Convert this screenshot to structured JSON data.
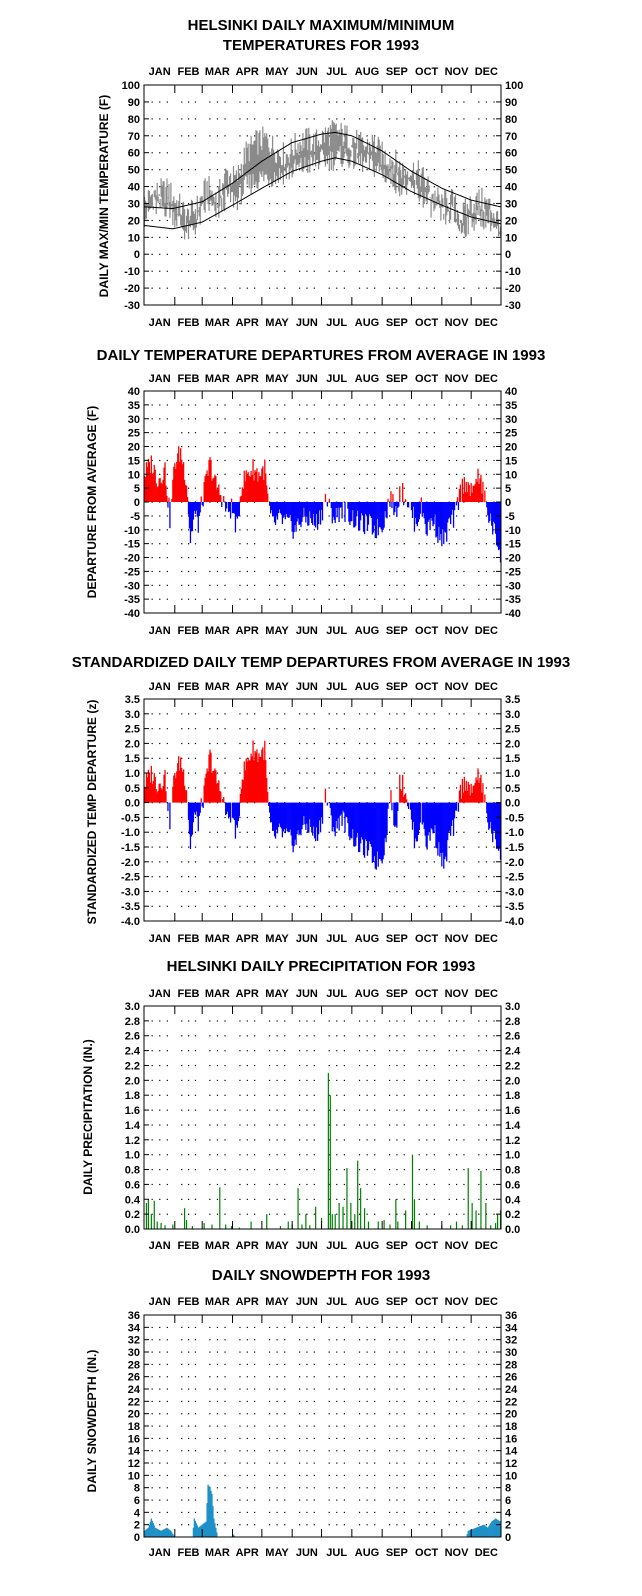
{
  "months": [
    "JAN",
    "FEB",
    "MAR",
    "APR",
    "MAY",
    "JUN",
    "JUL",
    "AUG",
    "SEP",
    "OCT",
    "NOV",
    "DEC"
  ],
  "colors": {
    "pos": "#ff0000",
    "neg": "#0000ff",
    "precip": "#008000",
    "snow": "#1e90c8",
    "gray": "#8a8a8a"
  },
  "chart_data": [
    {
      "type": "line",
      "title": [
        "HELSINKI DAILY MAXIMUM/MINIMUM",
        "TEMPERATURES FOR 1993"
      ],
      "ylabel": "DAILY MAX/MIN TEMPERATURE (F)",
      "ylim": [
        -30,
        100
      ],
      "yticks": [
        100,
        90,
        80,
        70,
        60,
        50,
        40,
        30,
        20,
        10,
        0,
        -10,
        -20,
        -30
      ],
      "x_unit": "day of year",
      "series": [],
      "daily_max_anchors": [
        [
          1,
          30
        ],
        [
          10,
          36
        ],
        [
          25,
          38
        ],
        [
          35,
          30
        ],
        [
          45,
          22
        ],
        [
          55,
          28
        ],
        [
          65,
          40
        ],
        [
          75,
          32
        ],
        [
          85,
          48
        ],
        [
          95,
          44
        ],
        [
          105,
          60
        ],
        [
          115,
          66
        ],
        [
          125,
          68
        ],
        [
          135,
          62
        ],
        [
          145,
          58
        ],
        [
          155,
          64
        ],
        [
          165,
          68
        ],
        [
          175,
          66
        ],
        [
          185,
          70
        ],
        [
          195,
          73
        ],
        [
          205,
          70
        ],
        [
          215,
          68
        ],
        [
          225,
          63
        ],
        [
          235,
          66
        ],
        [
          245,
          58
        ],
        [
          255,
          56
        ],
        [
          265,
          50
        ],
        [
          275,
          50
        ],
        [
          285,
          46
        ],
        [
          295,
          36
        ],
        [
          305,
          30
        ],
        [
          315,
          32
        ],
        [
          325,
          22
        ],
        [
          335,
          30
        ],
        [
          345,
          32
        ],
        [
          355,
          28
        ],
        [
          365,
          18
        ]
      ],
      "daily_min_anchors": [
        [
          1,
          22
        ],
        [
          10,
          28
        ],
        [
          25,
          28
        ],
        [
          35,
          20
        ],
        [
          45,
          12
        ],
        [
          55,
          18
        ],
        [
          65,
          30
        ],
        [
          75,
          24
        ],
        [
          85,
          34
        ],
        [
          95,
          32
        ],
        [
          105,
          40
        ],
        [
          115,
          44
        ],
        [
          125,
          46
        ],
        [
          135,
          46
        ],
        [
          145,
          48
        ],
        [
          155,
          50
        ],
        [
          165,
          52
        ],
        [
          175,
          54
        ],
        [
          185,
          56
        ],
        [
          195,
          56
        ],
        [
          205,
          58
        ],
        [
          215,
          56
        ],
        [
          225,
          54
        ],
        [
          235,
          52
        ],
        [
          245,
          48
        ],
        [
          255,
          44
        ],
        [
          265,
          40
        ],
        [
          275,
          38
        ],
        [
          285,
          34
        ],
        [
          295,
          28
        ],
        [
          305,
          22
        ],
        [
          315,
          24
        ],
        [
          325,
          14
        ],
        [
          335,
          20
        ],
        [
          345,
          22
        ],
        [
          355,
          20
        ],
        [
          365,
          8
        ]
      ],
      "normal_max_anchors": [
        [
          1,
          28
        ],
        [
          30,
          27
        ],
        [
          60,
          31
        ],
        [
          91,
          42
        ],
        [
          121,
          55
        ],
        [
          152,
          66
        ],
        [
          182,
          71
        ],
        [
          196,
          72
        ],
        [
          213,
          70
        ],
        [
          244,
          61
        ],
        [
          274,
          49
        ],
        [
          305,
          39
        ],
        [
          335,
          32
        ],
        [
          365,
          28
        ]
      ],
      "normal_min_anchors": [
        [
          1,
          17
        ],
        [
          30,
          15
        ],
        [
          60,
          19
        ],
        [
          91,
          29
        ],
        [
          121,
          39
        ],
        [
          152,
          49
        ],
        [
          182,
          55
        ],
        [
          196,
          57
        ],
        [
          213,
          55
        ],
        [
          244,
          47
        ],
        [
          274,
          37
        ],
        [
          305,
          29
        ],
        [
          335,
          22
        ],
        [
          365,
          18
        ]
      ]
    },
    {
      "type": "bar",
      "title": [
        "DAILY TEMPERATURE DEPARTURES FROM AVERAGE IN 1993"
      ],
      "ylabel": "DEPARTURE FROM AVERAGE (F)",
      "ylim": [
        -40,
        40
      ],
      "yticks": [
        40,
        35,
        30,
        25,
        20,
        15,
        10,
        5,
        0,
        -5,
        -10,
        -15,
        -20,
        -25,
        -30,
        -35,
        -40
      ],
      "anchors": [
        [
          1,
          10
        ],
        [
          8,
          14
        ],
        [
          15,
          8
        ],
        [
          22,
          12
        ],
        [
          27,
          -6
        ],
        [
          32,
          14
        ],
        [
          38,
          18
        ],
        [
          44,
          8
        ],
        [
          48,
          -14
        ],
        [
          52,
          -4
        ],
        [
          56,
          -8
        ],
        [
          62,
          4
        ],
        [
          68,
          14
        ],
        [
          74,
          6
        ],
        [
          80,
          2
        ],
        [
          86,
          -4
        ],
        [
          90,
          -2
        ],
        [
          96,
          -10
        ],
        [
          100,
          6
        ],
        [
          106,
          10
        ],
        [
          112,
          12
        ],
        [
          118,
          10
        ],
        [
          124,
          12
        ],
        [
          128,
          -2
        ],
        [
          132,
          -8
        ],
        [
          140,
          -6
        ],
        [
          148,
          -8
        ],
        [
          155,
          -10
        ],
        [
          162,
          -6
        ],
        [
          170,
          -6
        ],
        [
          176,
          -8
        ],
        [
          182,
          -4
        ],
        [
          186,
          1
        ],
        [
          190,
          -2
        ],
        [
          196,
          -6
        ],
        [
          202,
          -2
        ],
        [
          208,
          -4
        ],
        [
          215,
          -6
        ],
        [
          222,
          -8
        ],
        [
          230,
          -8
        ],
        [
          238,
          -10
        ],
        [
          244,
          -8
        ],
        [
          248,
          -4
        ],
        [
          252,
          2
        ],
        [
          258,
          -4
        ],
        [
          262,
          4
        ],
        [
          268,
          2
        ],
        [
          273,
          -2
        ],
        [
          278,
          -8
        ],
        [
          284,
          -2
        ],
        [
          290,
          -10
        ],
        [
          296,
          -6
        ],
        [
          302,
          -12
        ],
        [
          308,
          -14
        ],
        [
          312,
          -8
        ],
        [
          318,
          -6
        ],
        [
          324,
          4
        ],
        [
          330,
          8
        ],
        [
          336,
          2
        ],
        [
          340,
          10
        ],
        [
          346,
          6
        ],
        [
          352,
          -4
        ],
        [
          358,
          -10
        ],
        [
          365,
          -18
        ]
      ]
    },
    {
      "type": "bar",
      "title": [
        "STANDARDIZED DAILY TEMP DEPARTURES FROM AVERAGE IN 1993"
      ],
      "ylabel": "STANDARDIZED TEMP DEPARTURE (z)",
      "ylim": [
        -4.0,
        3.5
      ],
      "yticks": [
        "3.5",
        "3.0",
        "2.5",
        "2.0",
        "1.5",
        "1.0",
        "0.5",
        "0.0",
        "-0.5",
        "-1.0",
        "-1.5",
        "-2.0",
        "-2.5",
        "-3.0",
        "-3.5",
        "-4.0"
      ],
      "anchors": [
        [
          1,
          0.6
        ],
        [
          8,
          1.0
        ],
        [
          15,
          0.6
        ],
        [
          22,
          0.9
        ],
        [
          27,
          -0.6
        ],
        [
          32,
          1.0
        ],
        [
          38,
          1.4
        ],
        [
          44,
          0.6
        ],
        [
          48,
          -1.5
        ],
        [
          52,
          -0.4
        ],
        [
          56,
          -0.7
        ],
        [
          62,
          0.3
        ],
        [
          68,
          1.6
        ],
        [
          74,
          0.8
        ],
        [
          80,
          0.3
        ],
        [
          86,
          -0.6
        ],
        [
          90,
          -0.3
        ],
        [
          96,
          -1.2
        ],
        [
          100,
          0.8
        ],
        [
          106,
          1.4
        ],
        [
          112,
          1.8
        ],
        [
          118,
          1.6
        ],
        [
          124,
          1.8
        ],
        [
          128,
          -0.3
        ],
        [
          132,
          -1.2
        ],
        [
          140,
          -1.0
        ],
        [
          148,
          -1.2
        ],
        [
          155,
          -1.4
        ],
        [
          162,
          -0.8
        ],
        [
          170,
          -0.8
        ],
        [
          176,
          -1.2
        ],
        [
          182,
          -0.6
        ],
        [
          186,
          0.3
        ],
        [
          190,
          -0.3
        ],
        [
          196,
          -1.0
        ],
        [
          202,
          -0.4
        ],
        [
          208,
          -0.8
        ],
        [
          215,
          -1.2
        ],
        [
          222,
          -1.5
        ],
        [
          230,
          -1.6
        ],
        [
          238,
          -2.0
        ],
        [
          244,
          -1.8
        ],
        [
          248,
          -1.2
        ],
        [
          252,
          0.4
        ],
        [
          258,
          -1.0
        ],
        [
          262,
          0.8
        ],
        [
          268,
          0.4
        ],
        [
          273,
          -0.4
        ],
        [
          278,
          -1.4
        ],
        [
          284,
          -0.4
        ],
        [
          290,
          -1.4
        ],
        [
          296,
          -0.8
        ],
        [
          302,
          -1.6
        ],
        [
          308,
          -2.2
        ],
        [
          312,
          -1.2
        ],
        [
          318,
          -0.8
        ],
        [
          324,
          0.4
        ],
        [
          330,
          0.8
        ],
        [
          336,
          0.2
        ],
        [
          340,
          1.0
        ],
        [
          346,
          0.6
        ],
        [
          352,
          -0.6
        ],
        [
          358,
          -1.2
        ],
        [
          365,
          -1.6
        ]
      ]
    },
    {
      "type": "bar",
      "title": [
        "HELSINKI DAILY PRECIPITATION FOR 1993"
      ],
      "ylabel": "DAILY PRECIPITATION (IN.)",
      "ylim": [
        0,
        3.0
      ],
      "yticks": [
        "3.0",
        "2.8",
        "2.6",
        "2.4",
        "2.2",
        "2.0",
        "1.8",
        "1.6",
        "1.4",
        "1.2",
        "1.0",
        "0.8",
        "0.6",
        "0.4",
        "0.2",
        "0.0"
      ],
      "events": [
        [
          3,
          0.35
        ],
        [
          5,
          0.4
        ],
        [
          8,
          0.2
        ],
        [
          11,
          0.38
        ],
        [
          14,
          0.1
        ],
        [
          18,
          0.08
        ],
        [
          22,
          0.05
        ],
        [
          30,
          0.06
        ],
        [
          42,
          0.28
        ],
        [
          44,
          0.12
        ],
        [
          50,
          0.04
        ],
        [
          62,
          0.08
        ],
        [
          70,
          0.06
        ],
        [
          78,
          0.56
        ],
        [
          84,
          0.06
        ],
        [
          90,
          0.04
        ],
        [
          98,
          0.02
        ],
        [
          110,
          0.1
        ],
        [
          126,
          0.2
        ],
        [
          140,
          0.04
        ],
        [
          148,
          0.1
        ],
        [
          152,
          0.06
        ],
        [
          158,
          0.55
        ],
        [
          162,
          0.06
        ],
        [
          166,
          0.2
        ],
        [
          170,
          0.05
        ],
        [
          176,
          0.3
        ],
        [
          182,
          0.15
        ],
        [
          189,
          2.1
        ],
        [
          191,
          1.8
        ],
        [
          193,
          0.2
        ],
        [
          196,
          0.2
        ],
        [
          200,
          0.35
        ],
        [
          204,
          0.3
        ],
        [
          208,
          0.82
        ],
        [
          212,
          0.35
        ],
        [
          216,
          0.2
        ],
        [
          219,
          0.92
        ],
        [
          222,
          0.55
        ],
        [
          226,
          0.28
        ],
        [
          230,
          0.1
        ],
        [
          240,
          0.1
        ],
        [
          246,
          0.12
        ],
        [
          252,
          0.06
        ],
        [
          258,
          0.4
        ],
        [
          260,
          0.1
        ],
        [
          268,
          0.25
        ],
        [
          275,
          1.0
        ],
        [
          277,
          0.4
        ],
        [
          282,
          0.1
        ],
        [
          290,
          0.05
        ],
        [
          305,
          0.05
        ],
        [
          314,
          0.05
        ],
        [
          320,
          0.1
        ],
        [
          326,
          0.05
        ],
        [
          332,
          0.82
        ],
        [
          336,
          0.35
        ],
        [
          340,
          0.25
        ],
        [
          345,
          0.78
        ],
        [
          350,
          0.35
        ],
        [
          355,
          0.05
        ],
        [
          360,
          0.08
        ],
        [
          362,
          0.2
        ],
        [
          365,
          0.25
        ]
      ]
    },
    {
      "type": "area",
      "title": [
        "DAILY SNOWDEPTH FOR 1993"
      ],
      "ylabel": "DAILY SNOWDEPTH (IN.)",
      "ylim": [
        0,
        36
      ],
      "yticks": [
        36,
        34,
        32,
        30,
        28,
        26,
        24,
        22,
        20,
        18,
        16,
        14,
        12,
        10,
        8,
        6,
        4,
        2,
        0
      ],
      "anchors": [
        [
          1,
          1
        ],
        [
          5,
          1.5
        ],
        [
          8,
          3
        ],
        [
          12,
          1.5
        ],
        [
          18,
          1
        ],
        [
          24,
          1.5
        ],
        [
          28,
          1
        ],
        [
          32,
          0
        ],
        [
          50,
          0
        ],
        [
          52,
          3
        ],
        [
          56,
          1.5
        ],
        [
          60,
          2
        ],
        [
          64,
          2.5
        ],
        [
          66,
          8.5
        ],
        [
          68,
          8
        ],
        [
          70,
          7
        ],
        [
          72,
          3
        ],
        [
          74,
          1.5
        ],
        [
          76,
          0
        ],
        [
          90,
          0
        ],
        [
          92,
          0.4
        ],
        [
          94,
          0
        ],
        [
          330,
          0
        ],
        [
          332,
          1
        ],
        [
          340,
          1.5
        ],
        [
          348,
          2
        ],
        [
          352,
          1.5
        ],
        [
          356,
          2.5
        ],
        [
          360,
          3
        ],
        [
          365,
          2.5
        ]
      ]
    }
  ]
}
